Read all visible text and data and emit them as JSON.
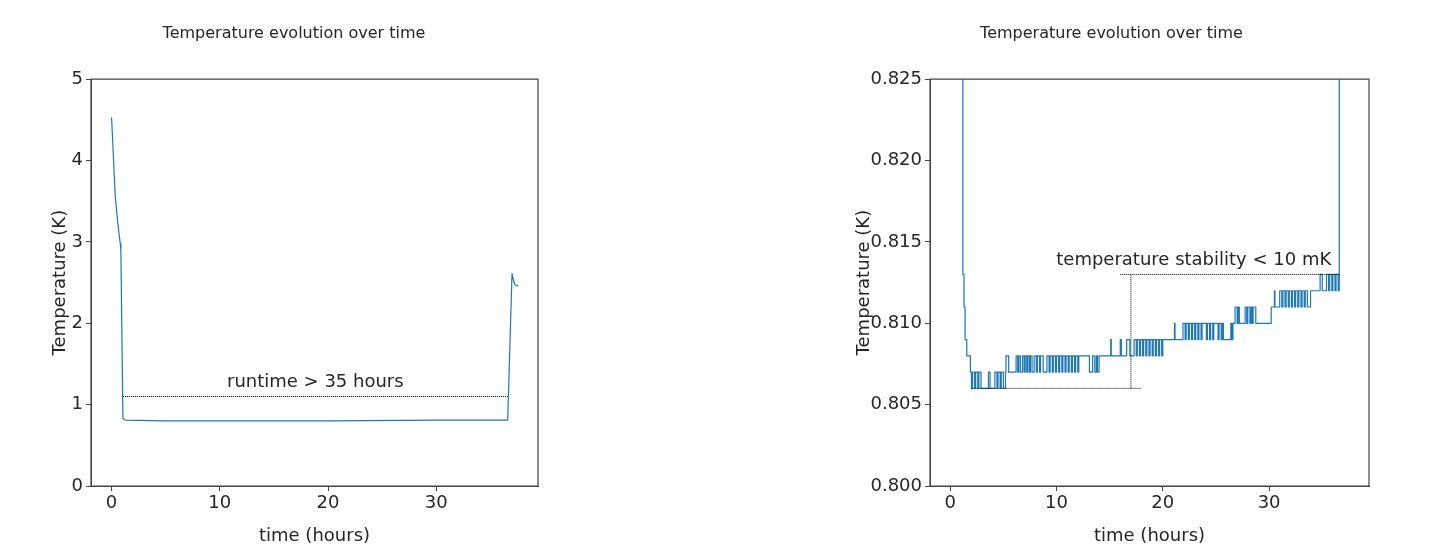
{
  "chart_data": [
    {
      "type": "line",
      "title": "Temperature evolution over time",
      "xlabel": "time (hours)",
      "ylabel": "Temperature (K)",
      "xlim": [
        -1.9,
        39.4
      ],
      "xticks": [
        0,
        10,
        20,
        30
      ],
      "ylim": [
        0,
        5
      ],
      "yticks": [
        0,
        1,
        2,
        3,
        4,
        5
      ],
      "series": [
        {
          "color": "#1f77b4",
          "x": [
            0,
            0.34,
            0.58,
            0.8,
            0.86,
            1.05,
            1.26,
            5,
            10,
            20,
            30,
            36.6,
            37.0,
            37.17,
            37.3,
            37.57
          ],
          "values": [
            4.53,
            3.56,
            3.23,
            2.98,
            2.9,
            0.83,
            0.81,
            0.8,
            0.8,
            0.8,
            0.81,
            0.81,
            2.61,
            2.51,
            2.47,
            2.46
          ]
        },
        {
          "type": "line",
          "color": "#000000",
          "line_style": "dotted",
          "x": [
            1.05,
            36.6
          ],
          "values": [
            1.1,
            1.1
          ]
        }
      ],
      "annotations": [
        "runtime > 35 hours"
      ]
    },
    {
      "type": "step",
      "title": "Temperature evolution over time",
      "xlabel": "time (hours)",
      "ylabel": "Temperature (K)",
      "xlim": [
        -1.9,
        39.4
      ],
      "xticks": [
        0,
        10,
        20,
        30
      ],
      "ylim": [
        0.8,
        0.825
      ],
      "yticks": [
        {
          "value": 0.8,
          "label": "0.800"
        },
        {
          "value": 0.805,
          "label": "0.805"
        },
        {
          "value": 0.81,
          "label": "0.810"
        },
        {
          "value": 0.815,
          "label": "0.815"
        },
        {
          "value": 0.82,
          "label": "0.820"
        },
        {
          "value": 0.825,
          "label": "0.825"
        }
      ],
      "series": [
        {
          "color": "#1f77b4",
          "x": [
            1.1,
            1.19,
            1.3,
            1.4,
            1.56,
            1.9,
            2.0,
            2.1,
            2.3,
            2.4,
            2.6,
            2.7,
            2.9,
            3.6,
            3.75,
            4.2,
            4.4,
            4.5,
            4.7,
            4.8,
            5.0,
            5.2,
            5.25,
            5.5,
            6.2,
            6.35,
            6.45,
            6.6,
            6.8,
            6.95,
            7.05,
            7.2,
            7.3,
            7.45,
            7.55,
            7.7,
            7.9,
            8.1,
            8.2,
            8.4,
            8.5,
            8.75,
            9.1,
            9.3,
            9.4,
            9.6,
            9.7,
            9.9,
            10.0,
            10.2,
            10.3,
            10.5,
            10.6,
            10.8,
            10.9,
            11.1,
            11.2,
            11.4,
            11.5,
            11.7,
            11.8,
            12.0,
            12.1,
            13.1,
            13.4,
            13.6,
            13.75,
            13.85,
            14.0,
            15.1,
            15.15,
            16.0,
            16.1,
            16.6,
            16.9,
            17.3,
            17.5,
            17.6,
            17.8,
            17.9,
            18.1,
            18.2,
            18.4,
            18.5,
            18.7,
            18.8,
            19.0,
            19.1,
            19.3,
            19.4,
            19.6,
            19.7,
            19.9,
            20.0,
            21.1,
            21.15,
            21.9,
            22.1,
            22.2,
            22.4,
            22.5,
            22.7,
            22.8,
            23.0,
            23.1,
            23.3,
            23.4,
            23.6,
            23.7,
            24.1,
            24.2,
            24.4,
            24.5,
            24.7,
            24.8,
            25.2,
            25.3,
            25.5,
            25.6,
            25.7,
            26.4,
            26.5,
            26.6,
            26.8,
            27.0,
            27.1,
            27.2,
            27.75,
            27.9,
            28.0,
            28.2,
            28.3,
            28.4,
            28.5,
            28.75,
            30.2,
            30.5,
            30.55,
            31.0,
            31.2,
            31.3,
            31.5,
            31.6,
            31.8,
            31.9,
            32.1,
            32.2,
            32.4,
            32.5,
            32.7,
            32.8,
            33.0,
            33.1,
            33.3,
            33.4,
            33.6,
            33.9,
            34.8,
            35.0,
            35.4,
            35.6,
            35.7,
            35.9,
            36.0,
            36.2,
            36.3,
            36.5,
            36.6
          ],
          "values": [
            0.825,
            0.813,
            0.811,
            0.809,
            0.808,
            0.807,
            0.806,
            0.807,
            0.806,
            0.807,
            0.806,
            0.807,
            0.806,
            0.807,
            0.806,
            0.807,
            0.806,
            0.807,
            0.806,
            0.807,
            0.806,
            0.807,
            0.808,
            0.807,
            0.808,
            0.807,
            0.808,
            0.807,
            0.808,
            0.807,
            0.808,
            0.807,
            0.808,
            0.807,
            0.808,
            0.807,
            0.808,
            0.807,
            0.808,
            0.807,
            0.808,
            0.807,
            0.808,
            0.807,
            0.808,
            0.807,
            0.808,
            0.807,
            0.808,
            0.807,
            0.808,
            0.807,
            0.808,
            0.807,
            0.808,
            0.807,
            0.808,
            0.807,
            0.808,
            0.807,
            0.808,
            0.807,
            0.808,
            0.807,
            0.808,
            0.807,
            0.808,
            0.807,
            0.808,
            0.809,
            0.808,
            0.809,
            0.808,
            0.809,
            0.808,
            0.809,
            0.808,
            0.809,
            0.808,
            0.809,
            0.808,
            0.809,
            0.808,
            0.809,
            0.808,
            0.809,
            0.808,
            0.809,
            0.808,
            0.809,
            0.808,
            0.809,
            0.808,
            0.809,
            0.81,
            0.809,
            0.81,
            0.809,
            0.81,
            0.809,
            0.81,
            0.809,
            0.81,
            0.809,
            0.81,
            0.809,
            0.81,
            0.809,
            0.81,
            0.809,
            0.81,
            0.809,
            0.81,
            0.809,
            0.81,
            0.809,
            0.81,
            0.809,
            0.81,
            0.809,
            0.81,
            0.809,
            0.81,
            0.811,
            0.81,
            0.811,
            0.81,
            0.811,
            0.81,
            0.811,
            0.81,
            0.811,
            0.81,
            0.811,
            0.81,
            0.811,
            0.812,
            0.811,
            0.812,
            0.811,
            0.812,
            0.811,
            0.812,
            0.811,
            0.812,
            0.811,
            0.812,
            0.811,
            0.812,
            0.811,
            0.812,
            0.811,
            0.812,
            0.811,
            0.812,
            0.811,
            0.812,
            0.813,
            0.812,
            0.813,
            0.812,
            0.813,
            0.812,
            0.813,
            0.812,
            0.813,
            0.812,
            0.825
          ]
        },
        {
          "type": "line",
          "color": "#000000",
          "line_style": "dotted",
          "x": [
            2.0,
            18.0
          ],
          "values": [
            0.806,
            0.806
          ]
        },
        {
          "type": "line",
          "color": "#000000",
          "line_style": "dotted",
          "x": [
            16.0,
            36.6
          ],
          "values": [
            0.813,
            0.813
          ]
        },
        {
          "type": "line",
          "color": "#000000",
          "line_style": "dotted",
          "x": [
            17.0,
            17.0
          ],
          "values": [
            0.806,
            0.813
          ]
        }
      ],
      "annotations": [
        "temperature stability < 10 mK"
      ]
    }
  ]
}
